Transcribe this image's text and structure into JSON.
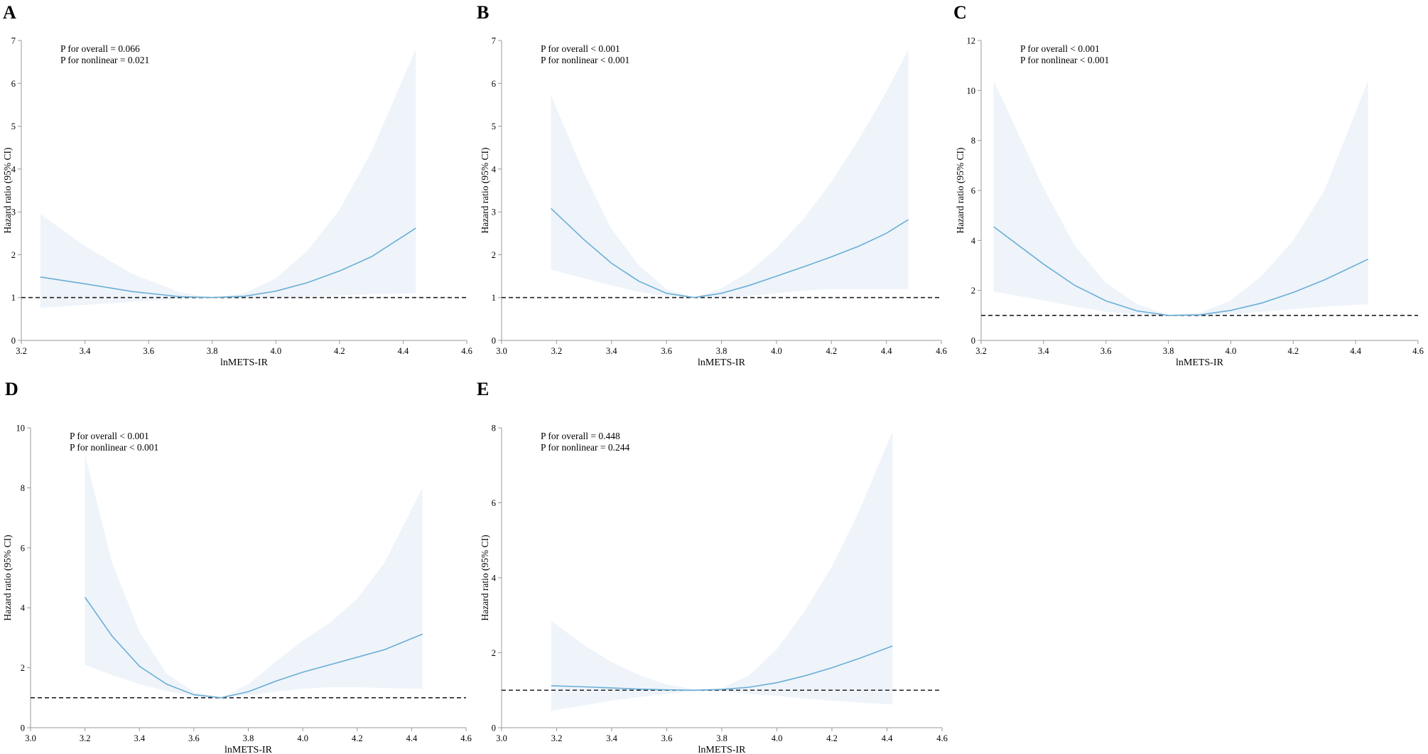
{
  "chart_data": [
    {
      "type": "line",
      "panel": "A",
      "xlabel": "lnMETS-IR",
      "ylabel": "Hazard ratio (95% CI)",
      "xlim": [
        3.2,
        4.6
      ],
      "ylim": [
        0,
        7
      ],
      "xticks": [
        3.2,
        3.4,
        3.6,
        3.8,
        4.0,
        4.2,
        4.4,
        4.6
      ],
      "xtick_labels": [
        "3.2",
        "3.4",
        "3.6",
        "3.8",
        "4.0",
        "4.2",
        "4.4",
        "4.6"
      ],
      "yticks": [
        0,
        1,
        2,
        3,
        4,
        5,
        6,
        7
      ],
      "ytick_labels": [
        "0",
        "1",
        "2",
        "3",
        "4",
        "5",
        "6",
        "7"
      ],
      "annotations": [
        "P for overall = 0.066",
        "P for nonlinear = 0.021"
      ],
      "reference_line": 1,
      "series": [
        {
          "name": "HR",
          "x": [
            3.26,
            3.4,
            3.55,
            3.7,
            3.8,
            3.9,
            4.0,
            4.1,
            4.2,
            4.3,
            4.44
          ],
          "values": [
            1.48,
            1.32,
            1.14,
            1.02,
            1.0,
            1.03,
            1.15,
            1.35,
            1.62,
            1.95,
            2.62
          ]
        },
        {
          "name": "CI lower",
          "x": [
            3.26,
            3.4,
            3.55,
            3.7,
            3.8,
            3.9,
            4.0,
            4.1,
            4.2,
            4.3,
            4.44
          ],
          "values": [
            0.76,
            0.83,
            0.9,
            0.97,
            1.0,
            0.98,
            1.0,
            1.02,
            1.05,
            1.08,
            1.1
          ]
        },
        {
          "name": "CI upper",
          "x": [
            3.26,
            3.4,
            3.55,
            3.7,
            3.8,
            3.9,
            4.0,
            4.1,
            4.2,
            4.3,
            4.44
          ],
          "values": [
            2.95,
            2.2,
            1.55,
            1.12,
            1.0,
            1.1,
            1.45,
            2.1,
            3.05,
            4.4,
            6.8
          ]
        }
      ]
    },
    {
      "type": "line",
      "panel": "B",
      "xlabel": "lnMETS-IR",
      "ylabel": "Hazard ratio (95% CI)",
      "xlim": [
        3.0,
        4.6
      ],
      "ylim": [
        0,
        7
      ],
      "xticks": [
        3.0,
        3.2,
        3.4,
        3.6,
        3.8,
        4.0,
        4.2,
        4.4,
        4.6
      ],
      "xtick_labels": [
        "3.0",
        "3.2",
        "3.4",
        "3.6",
        "3.8",
        "4.0",
        "4.2",
        "4.4",
        "4.6"
      ],
      "yticks": [
        0,
        1,
        2,
        3,
        4,
        5,
        6,
        7
      ],
      "ytick_labels": [
        "0",
        "1",
        "2",
        "3",
        "4",
        "5",
        "6",
        "7"
      ],
      "annotations": [
        "P for overall < 0.001",
        "P for nonlinear < 0.001"
      ],
      "reference_line": 1,
      "series": [
        {
          "name": "HR",
          "x": [
            3.18,
            3.3,
            3.4,
            3.5,
            3.6,
            3.7,
            3.8,
            3.9,
            4.0,
            4.1,
            4.2,
            4.3,
            4.4,
            4.48
          ],
          "values": [
            3.08,
            2.35,
            1.8,
            1.38,
            1.1,
            1.0,
            1.1,
            1.28,
            1.5,
            1.72,
            1.95,
            2.2,
            2.5,
            2.82
          ]
        },
        {
          "name": "CI lower",
          "x": [
            3.18,
            3.3,
            3.4,
            3.5,
            3.6,
            3.7,
            3.8,
            3.9,
            4.0,
            4.1,
            4.2,
            4.3,
            4.4,
            4.48
          ],
          "values": [
            1.65,
            1.45,
            1.28,
            1.13,
            1.03,
            1.0,
            1.0,
            1.04,
            1.1,
            1.16,
            1.2,
            1.2,
            1.2,
            1.2
          ]
        },
        {
          "name": "CI upper",
          "x": [
            3.18,
            3.3,
            3.4,
            3.5,
            3.6,
            3.7,
            3.8,
            3.9,
            4.0,
            4.1,
            4.2,
            4.3,
            4.4,
            4.48
          ],
          "values": [
            5.72,
            3.9,
            2.6,
            1.75,
            1.2,
            1.0,
            1.22,
            1.6,
            2.15,
            2.85,
            3.7,
            4.7,
            5.8,
            6.8
          ]
        }
      ]
    },
    {
      "type": "line",
      "panel": "C",
      "xlabel": "lnMETS-IR",
      "ylabel": "Hazard ratio (95% CI)",
      "xlim": [
        3.2,
        4.6
      ],
      "ylim": [
        0,
        12
      ],
      "xticks": [
        3.2,
        3.4,
        3.6,
        3.8,
        4.0,
        4.2,
        4.4,
        4.6
      ],
      "xtick_labels": [
        "3.2",
        "3.4",
        "3.6",
        "3.8",
        "4.0",
        "4.2",
        "4.4",
        "4.6"
      ],
      "yticks": [
        0,
        2,
        4,
        6,
        8,
        10,
        12
      ],
      "ytick_labels": [
        "0",
        "2",
        "4",
        "6",
        "8",
        "10",
        "12"
      ],
      "annotations": [
        "P for overall < 0.001",
        "P for nonlinear < 0.001"
      ],
      "reference_line": 1,
      "series": [
        {
          "name": "HR",
          "x": [
            3.24,
            3.4,
            3.5,
            3.6,
            3.7,
            3.8,
            3.9,
            4.0,
            4.1,
            4.2,
            4.3,
            4.44
          ],
          "values": [
            4.55,
            3.05,
            2.2,
            1.58,
            1.18,
            1.0,
            1.02,
            1.2,
            1.5,
            1.92,
            2.42,
            3.25
          ]
        },
        {
          "name": "CI lower",
          "x": [
            3.24,
            3.4,
            3.5,
            3.6,
            3.7,
            3.8,
            3.9,
            4.0,
            4.1,
            4.2,
            4.3,
            4.44
          ],
          "values": [
            1.95,
            1.6,
            1.35,
            1.15,
            1.03,
            1.0,
            1.0,
            1.05,
            1.15,
            1.25,
            1.35,
            1.45
          ]
        },
        {
          "name": "CI upper",
          "x": [
            3.24,
            3.4,
            3.5,
            3.6,
            3.7,
            3.8,
            3.9,
            4.0,
            4.1,
            4.2,
            4.3,
            4.44
          ],
          "values": [
            10.4,
            6.1,
            3.8,
            2.3,
            1.45,
            1.02,
            1.1,
            1.6,
            2.6,
            4.0,
            6.0,
            10.4
          ]
        }
      ]
    },
    {
      "type": "line",
      "panel": "D",
      "xlabel": "lnMETS-IR",
      "ylabel": "Hazard ratio (95% CI)",
      "xlim": [
        3.0,
        4.6
      ],
      "ylim": [
        0,
        10
      ],
      "xticks": [
        3.0,
        3.2,
        3.4,
        3.6,
        3.8,
        4.0,
        4.2,
        4.4,
        4.6
      ],
      "xtick_labels": [
        "3.0",
        "3.2",
        "3.4",
        "3.6",
        "3.8",
        "4.0",
        "4.2",
        "4.4",
        "4.6"
      ],
      "yticks": [
        0,
        2,
        4,
        6,
        8,
        10
      ],
      "ytick_labels": [
        "0",
        "2",
        "4",
        "6",
        "8",
        "10"
      ],
      "annotations": [
        "P for overall < 0.001",
        "P for nonlinear < 0.001"
      ],
      "reference_line": 1,
      "series": [
        {
          "name": "HR",
          "x": [
            3.2,
            3.3,
            3.4,
            3.5,
            3.6,
            3.7,
            3.8,
            3.9,
            4.0,
            4.1,
            4.2,
            4.3,
            4.44
          ],
          "values": [
            4.35,
            3.05,
            2.05,
            1.45,
            1.1,
            1.0,
            1.2,
            1.55,
            1.85,
            2.1,
            2.35,
            2.6,
            3.12
          ]
        },
        {
          "name": "CI lower",
          "x": [
            3.2,
            3.3,
            3.4,
            3.5,
            3.6,
            3.7,
            3.8,
            3.9,
            4.0,
            4.1,
            4.2,
            4.3,
            4.44
          ],
          "values": [
            2.1,
            1.75,
            1.45,
            1.22,
            1.05,
            1.0,
            1.08,
            1.2,
            1.3,
            1.35,
            1.35,
            1.32,
            1.3
          ]
        },
        {
          "name": "CI upper",
          "x": [
            3.2,
            3.3,
            3.4,
            3.5,
            3.6,
            3.7,
            3.8,
            3.9,
            4.0,
            4.1,
            4.2,
            4.3,
            4.44
          ],
          "values": [
            9.1,
            5.5,
            3.2,
            1.8,
            1.2,
            1.0,
            1.45,
            2.2,
            2.9,
            3.5,
            4.3,
            5.5,
            8.0
          ]
        }
      ]
    },
    {
      "type": "line",
      "panel": "E",
      "xlabel": "lnMETS-IR",
      "ylabel": "Hazard ratio (95% CI)",
      "xlim": [
        3.0,
        4.6
      ],
      "ylim": [
        0,
        8
      ],
      "xticks": [
        3.0,
        3.2,
        3.4,
        3.6,
        3.8,
        4.0,
        4.2,
        4.4,
        4.6
      ],
      "xtick_labels": [
        "3.0",
        "3.2",
        "3.4",
        "3.6",
        "3.8",
        "4.0",
        "4.2",
        "4.4",
        "4.6"
      ],
      "yticks": [
        0,
        2,
        4,
        6,
        8
      ],
      "ytick_labels": [
        "0",
        "2",
        "4",
        "6",
        "8"
      ],
      "annotations": [
        "P for overall = 0.448",
        "P for nonlinear = 0.244"
      ],
      "reference_line": 1,
      "series": [
        {
          "name": "HR",
          "x": [
            3.18,
            3.3,
            3.4,
            3.5,
            3.6,
            3.7,
            3.8,
            3.9,
            4.0,
            4.1,
            4.2,
            4.3,
            4.42
          ],
          "values": [
            1.12,
            1.09,
            1.06,
            1.03,
            1.01,
            1.0,
            1.02,
            1.08,
            1.2,
            1.38,
            1.6,
            1.85,
            2.18
          ]
        },
        {
          "name": "CI lower",
          "x": [
            3.18,
            3.3,
            3.4,
            3.5,
            3.6,
            3.7,
            3.8,
            3.9,
            4.0,
            4.1,
            4.2,
            4.3,
            4.42
          ],
          "values": [
            0.45,
            0.6,
            0.72,
            0.82,
            0.9,
            0.97,
            0.98,
            0.9,
            0.85,
            0.78,
            0.72,
            0.67,
            0.62
          ]
        },
        {
          "name": "CI upper",
          "x": [
            3.18,
            3.3,
            3.4,
            3.5,
            3.6,
            3.7,
            3.8,
            3.9,
            4.0,
            4.1,
            4.2,
            4.3,
            4.42
          ],
          "values": [
            2.85,
            2.2,
            1.75,
            1.4,
            1.15,
            1.02,
            1.06,
            1.4,
            2.1,
            3.1,
            4.3,
            5.8,
            7.9
          ]
        }
      ]
    }
  ]
}
